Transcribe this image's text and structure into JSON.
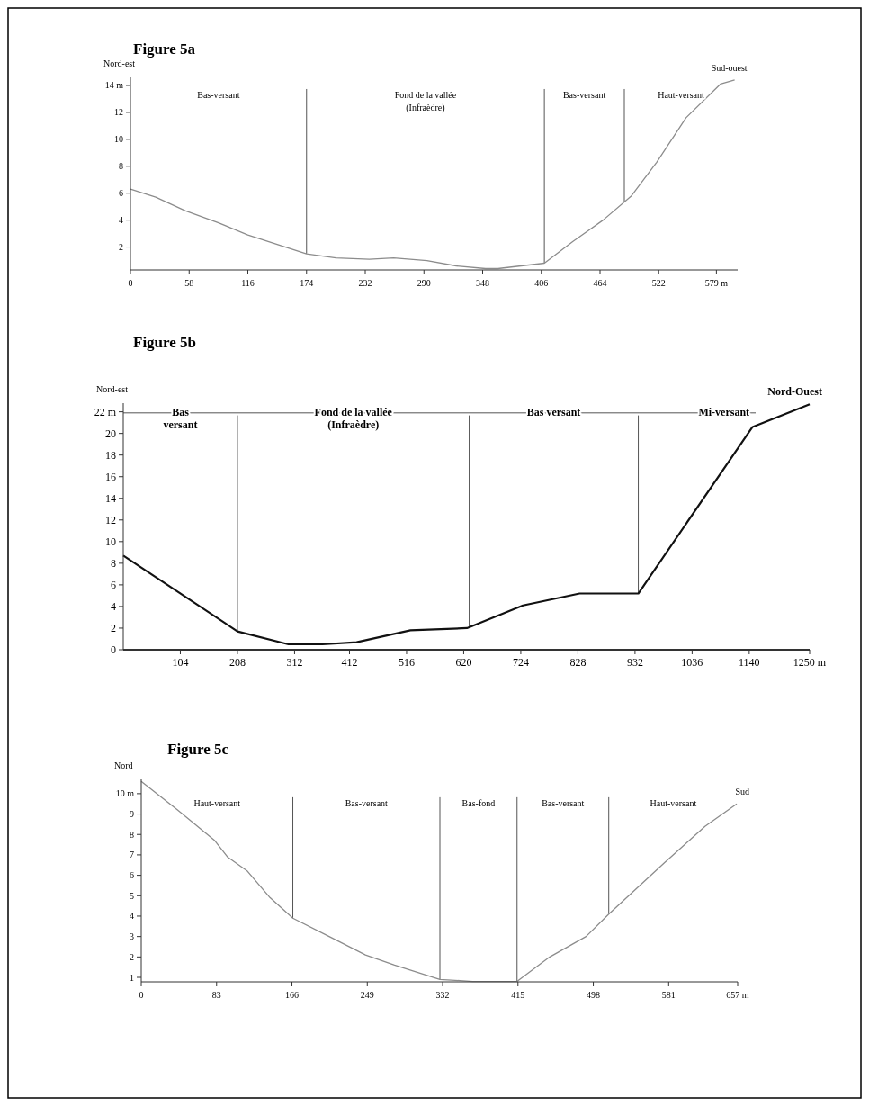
{
  "chart_data": [
    {
      "type": "line",
      "title": "Figure 5a",
      "ylabel": "Nord-est",
      "color": "#8c8c8c",
      "x": [
        0,
        25,
        54,
        87,
        116,
        145,
        174,
        203,
        236,
        260,
        293,
        322,
        351,
        363,
        409,
        437,
        467,
        495,
        520,
        549,
        583,
        597
      ],
      "values": [
        6.3,
        5.7,
        4.7,
        3.8,
        2.9,
        2.2,
        1.5,
        1.2,
        1.1,
        1.2,
        1.0,
        0.6,
        0.4,
        0.4,
        0.8,
        2.4,
        4.0,
        5.8,
        8.3,
        11.6,
        14.1,
        14.4
      ],
      "xlim": [
        0,
        600
      ],
      "ylim": [
        0.3,
        14.6
      ],
      "xticks": [
        0,
        58,
        116,
        174,
        232,
        290,
        348,
        406,
        464,
        522,
        {
          "value": 579,
          "label": "579 m"
        }
      ],
      "yticks": [
        2,
        4,
        6,
        8,
        10,
        12,
        {
          "value": 14,
          "label": "14 m"
        }
      ],
      "ref_lines": [
        {
          "axis": "x",
          "value": 174
        },
        {
          "axis": "x",
          "value": 409
        },
        {
          "axis": "x",
          "value": 488
        }
      ],
      "annotations": [
        "Bas-versant",
        "Fond de la vallée\n(Infraèdre)",
        "Bas-versant",
        "Haut-versant",
        {
          "text": "Sud-ouest",
          "x": 597,
          "y": 14.4
        }
      ]
    },
    {
      "type": "line",
      "title": "Figure 5b",
      "ylabel": "Nord-est",
      "color": "#111111",
      "x": [
        0,
        208,
        301,
        363,
        425,
        523,
        626,
        728,
        831,
        938,
        1146,
        1250
      ],
      "values": [
        8.7,
        1.7,
        0.5,
        0.5,
        0.7,
        1.8,
        2.0,
        4.1,
        5.2,
        5.2,
        20.6,
        22.7
      ],
      "xlim": [
        0,
        1250
      ],
      "ylim": [
        0,
        22.8
      ],
      "xticks": [
        104,
        208,
        312,
        412,
        516,
        620,
        724,
        828,
        932,
        1036,
        1140,
        {
          "value": 1250,
          "label": "1250 m"
        }
      ],
      "yticks": [
        0,
        2,
        4,
        6,
        8,
        10,
        12,
        14,
        16,
        18,
        20,
        {
          "value": 22,
          "label": "22 m"
        }
      ],
      "ref_lines": [
        {
          "axis": "x",
          "value": 208
        },
        {
          "axis": "x",
          "value": 630
        },
        {
          "axis": "x",
          "value": 938
        },
        {
          "axis": "y",
          "value": 21.9
        }
      ],
      "annotations": [
        "Bas\nversant",
        "Fond de la vallée\n(Infraèdre)",
        "Bas versant",
        "Mi-versant",
        {
          "text": "Nord-Ouest",
          "x": 1250,
          "y": 22.7
        }
      ]
    },
    {
      "type": "line",
      "title": "Figure 5c",
      "ylabel": "Nord",
      "color": "#8c8c8c",
      "x": [
        0,
        40,
        81,
        95,
        117,
        142,
        167,
        207,
        247,
        279,
        329,
        365,
        414,
        450,
        490,
        515,
        576,
        621,
        656
      ],
      "values": [
        10.6,
        9.2,
        7.7,
        6.9,
        6.2,
        4.9,
        3.9,
        3.0,
        2.1,
        1.6,
        0.9,
        0.8,
        0.8,
        2.0,
        3.0,
        4.1,
        6.6,
        8.4,
        9.5
      ],
      "xlim": [
        0,
        657
      ],
      "ylim": [
        0.78,
        10.7
      ],
      "xticks": [
        0,
        83,
        166,
        249,
        332,
        415,
        498,
        581,
        {
          "value": 657,
          "label": "657 m"
        }
      ],
      "yticks": [
        1,
        2,
        3,
        4,
        5,
        6,
        7,
        8,
        9,
        {
          "value": 10,
          "label": "10 m"
        }
      ],
      "ref_lines": [
        {
          "axis": "x",
          "value": 167
        },
        {
          "axis": "x",
          "value": 329
        },
        {
          "axis": "x",
          "value": 414
        },
        {
          "axis": "x",
          "value": 515
        }
      ],
      "annotations": [
        "Haut-versant",
        "Bas-versant",
        "Bas-fond",
        "Bas-versant",
        "Haut-versant",
        {
          "text": "Sud",
          "x": 656,
          "y": 9.5
        }
      ]
    }
  ]
}
